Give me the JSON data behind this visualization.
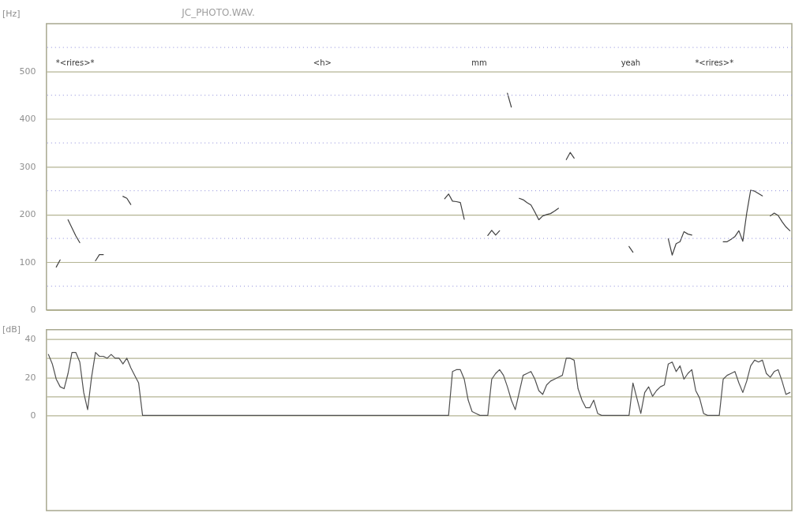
{
  "chart_data": [
    {
      "type": "line",
      "title": "JC_PHOTO.WAV.",
      "ylabel": "[Hz]",
      "annotations": [
        "*<rires>*",
        "<h>",
        "mm",
        "yeah",
        "*<rires>*"
      ],
      "categories": [
        null,
        null,
        null,
        null,
        null,
        null,
        null,
        null,
        null,
        null,
        null,
        null,
        null,
        null,
        null,
        null,
        null,
        null,
        null,
        null,
        null,
        null,
        null,
        null,
        null,
        null,
        null,
        null,
        null,
        null,
        null,
        null,
        null,
        null,
        null,
        null,
        null,
        null,
        null,
        null,
        null,
        null,
        null,
        null,
        null,
        null,
        null,
        null,
        null,
        null,
        null,
        null,
        null,
        null,
        null,
        null,
        null,
        null,
        null,
        null,
        null,
        null,
        null,
        null,
        null,
        null,
        null,
        null,
        null,
        null,
        null,
        null,
        null,
        null,
        null,
        null,
        null,
        null,
        null,
        null,
        null,
        null,
        null,
        null,
        null,
        null,
        null,
        null,
        null,
        null,
        null,
        null,
        null,
        null,
        null,
        null,
        null,
        null,
        null,
        null,
        null,
        null,
        null,
        null,
        null,
        null,
        null,
        null,
        null,
        null,
        null,
        null,
        null,
        null,
        null,
        null,
        null,
        null,
        null,
        null,
        null,
        null,
        null,
        null,
        null,
        null,
        null,
        null,
        null,
        null,
        null,
        null,
        null,
        null,
        null,
        null,
        null,
        null,
        null,
        null,
        null,
        null,
        null,
        null,
        null,
        null,
        null,
        null,
        null,
        null,
        null,
        null,
        null,
        null,
        null,
        null,
        null,
        null,
        null,
        null,
        null,
        null,
        null,
        null,
        null,
        null,
        null,
        null,
        null,
        null,
        null,
        null,
        null,
        null,
        null,
        null,
        null,
        null,
        null,
        null,
        null,
        null,
        null,
        null,
        null,
        null,
        null,
        null,
        null,
        null
      ],
      "series": [
        {
          "color": "#404040",
          "values": [
            null,
            null,
            90,
            105,
            null,
            189,
            172,
            155,
            141,
            null,
            null,
            null,
            103,
            116,
            116,
            null,
            null,
            null,
            null,
            238,
            234,
            221,
            null,
            null,
            null,
            null,
            null,
            null,
            null,
            null,
            null,
            null,
            null,
            null,
            null,
            null,
            null,
            null,
            null,
            null,
            null,
            null,
            null,
            null,
            null,
            null,
            null,
            null,
            null,
            null,
            null,
            null,
            null,
            null,
            null,
            null,
            null,
            null,
            null,
            null,
            null,
            null,
            null,
            null,
            null,
            null,
            null,
            null,
            null,
            null,
            null,
            null,
            null,
            null,
            null,
            null,
            null,
            null,
            null,
            null,
            null,
            null,
            null,
            null,
            null,
            null,
            null,
            null,
            null,
            null,
            null,
            null,
            null,
            null,
            null,
            null,
            null,
            null,
            null,
            null,
            null,
            233,
            243,
            228,
            227,
            225,
            190,
            null,
            null,
            null,
            null,
            null,
            156,
            167,
            157,
            166,
            null,
            454,
            425,
            null,
            234,
            231,
            225,
            220,
            205,
            189,
            197,
            200,
            202,
            207,
            213,
            null,
            315,
            330,
            318,
            null,
            null,
            null,
            null,
            null,
            null,
            null,
            null,
            null,
            null,
            null,
            null,
            null,
            133,
            121,
            null,
            null,
            null,
            null,
            null,
            null,
            null,
            null,
            149,
            115,
            139,
            143,
            164,
            159,
            157,
            null,
            null,
            null,
            null,
            null,
            null,
            null,
            143,
            143,
            148,
            154,
            166,
            144,
            203,
            251,
            249,
            244,
            239,
            null,
            197,
            203,
            198,
            185,
            174,
            166
          ]
        }
      ],
      "ylim": [
        0,
        600
      ],
      "yticks": [
        0,
        100,
        200,
        300,
        400,
        500
      ],
      "grid": "y",
      "tick_labels": "y",
      "ref_lines": [
        {
          "axis": "y",
          "value": 50,
          "line_style": "dotted",
          "color": "#a0a0e0"
        },
        {
          "axis": "y",
          "value": 150,
          "line_style": "dotted",
          "color": "#a0a0e0"
        },
        {
          "axis": "y",
          "value": 250,
          "line_style": "dotted",
          "color": "#a0a0e0"
        },
        {
          "axis": "y",
          "value": 350,
          "line_style": "dotted",
          "color": "#a0a0e0"
        },
        {
          "axis": "y",
          "value": 450,
          "line_style": "dotted",
          "color": "#a0a0e0"
        },
        {
          "axis": "y",
          "value": 550,
          "line_style": "dotted",
          "color": "#a0a0e0"
        }
      ]
    },
    {
      "type": "line",
      "ylabel": "[dB]",
      "categories": [
        null,
        null,
        null,
        null,
        null,
        null,
        null,
        null,
        null,
        null,
        null,
        null,
        null,
        null,
        null,
        null,
        null,
        null,
        null,
        null,
        null,
        null,
        null,
        null,
        null,
        null,
        null,
        null,
        null,
        null,
        null,
        null,
        null,
        null,
        null,
        null,
        null,
        null,
        null,
        null,
        null,
        null,
        null,
        null,
        null,
        null,
        null,
        null,
        null,
        null,
        null,
        null,
        null,
        null,
        null,
        null,
        null,
        null,
        null,
        null,
        null,
        null,
        null,
        null,
        null,
        null,
        null,
        null,
        null,
        null,
        null,
        null,
        null,
        null,
        null,
        null,
        null,
        null,
        null,
        null,
        null,
        null,
        null,
        null,
        null,
        null,
        null,
        null,
        null,
        null,
        null,
        null,
        null,
        null,
        null,
        null,
        null,
        null,
        null,
        null,
        null,
        null,
        null,
        null,
        null,
        null,
        null,
        null,
        null,
        null,
        null,
        null,
        null,
        null,
        null,
        null,
        null,
        null,
        null,
        null,
        null,
        null,
        null,
        null,
        null,
        null,
        null,
        null,
        null,
        null,
        null,
        null,
        null,
        null,
        null,
        null,
        null,
        null,
        null,
        null,
        null,
        null,
        null,
        null,
        null,
        null,
        null,
        null,
        null,
        null,
        null,
        null,
        null,
        null,
        null,
        null,
        null,
        null,
        null,
        null,
        null,
        null,
        null,
        null,
        null,
        null,
        null,
        null,
        null,
        null,
        null,
        null,
        null,
        null,
        null,
        null,
        null,
        null,
        null,
        null,
        null,
        null,
        null,
        null,
        null,
        null,
        null,
        null,
        null,
        null
      ],
      "series": [
        {
          "color": "#505050",
          "values": [
            32,
            27,
            19,
            15,
            14,
            22,
            33,
            33,
            28,
            12,
            3,
            20,
            33,
            31,
            31,
            30,
            32,
            30,
            30,
            27,
            30,
            25,
            21,
            17,
            0,
            0,
            0,
            0,
            0,
            0,
            0,
            0,
            0,
            0,
            0,
            0,
            0,
            0,
            0,
            0,
            0,
            0,
            0,
            0,
            0,
            0,
            0,
            0,
            0,
            0,
            0,
            0,
            0,
            0,
            0,
            0,
            0,
            0,
            0,
            0,
            0,
            0,
            0,
            0,
            0,
            0,
            0,
            0,
            0,
            0,
            0,
            0,
            0,
            0,
            0,
            0,
            0,
            0,
            0,
            0,
            0,
            0,
            0,
            0,
            0,
            0,
            0,
            0,
            0,
            0,
            0,
            0,
            0,
            0,
            0,
            0,
            0,
            0,
            0,
            0,
            0,
            0,
            0,
            23,
            24,
            24,
            19,
            8,
            2,
            1,
            0,
            0,
            0,
            19,
            22,
            24,
            21,
            15,
            8,
            3,
            12,
            21,
            22,
            23,
            19,
            13,
            11,
            16,
            18,
            19,
            20,
            21,
            30,
            30,
            29,
            14,
            8,
            4,
            4,
            8,
            1,
            0,
            0,
            0,
            0,
            0,
            0,
            0,
            0,
            17,
            9,
            1,
            12,
            15,
            10,
            13,
            15,
            16,
            27,
            28,
            23,
            26,
            19,
            22,
            24,
            13,
            9,
            1,
            0,
            0,
            0,
            0,
            19,
            21,
            22,
            23,
            17,
            12,
            18,
            26,
            29,
            28,
            29,
            22,
            20,
            23,
            24,
            18,
            11,
            12
          ]
        }
      ],
      "ylim": [
        -50,
        45
      ],
      "yticks": [
        0,
        {
          "value": 10,
          "label": null
        },
        20,
        {
          "value": 30,
          "label": null
        },
        40
      ],
      "grid": "y",
      "tick_labels": "y"
    }
  ]
}
